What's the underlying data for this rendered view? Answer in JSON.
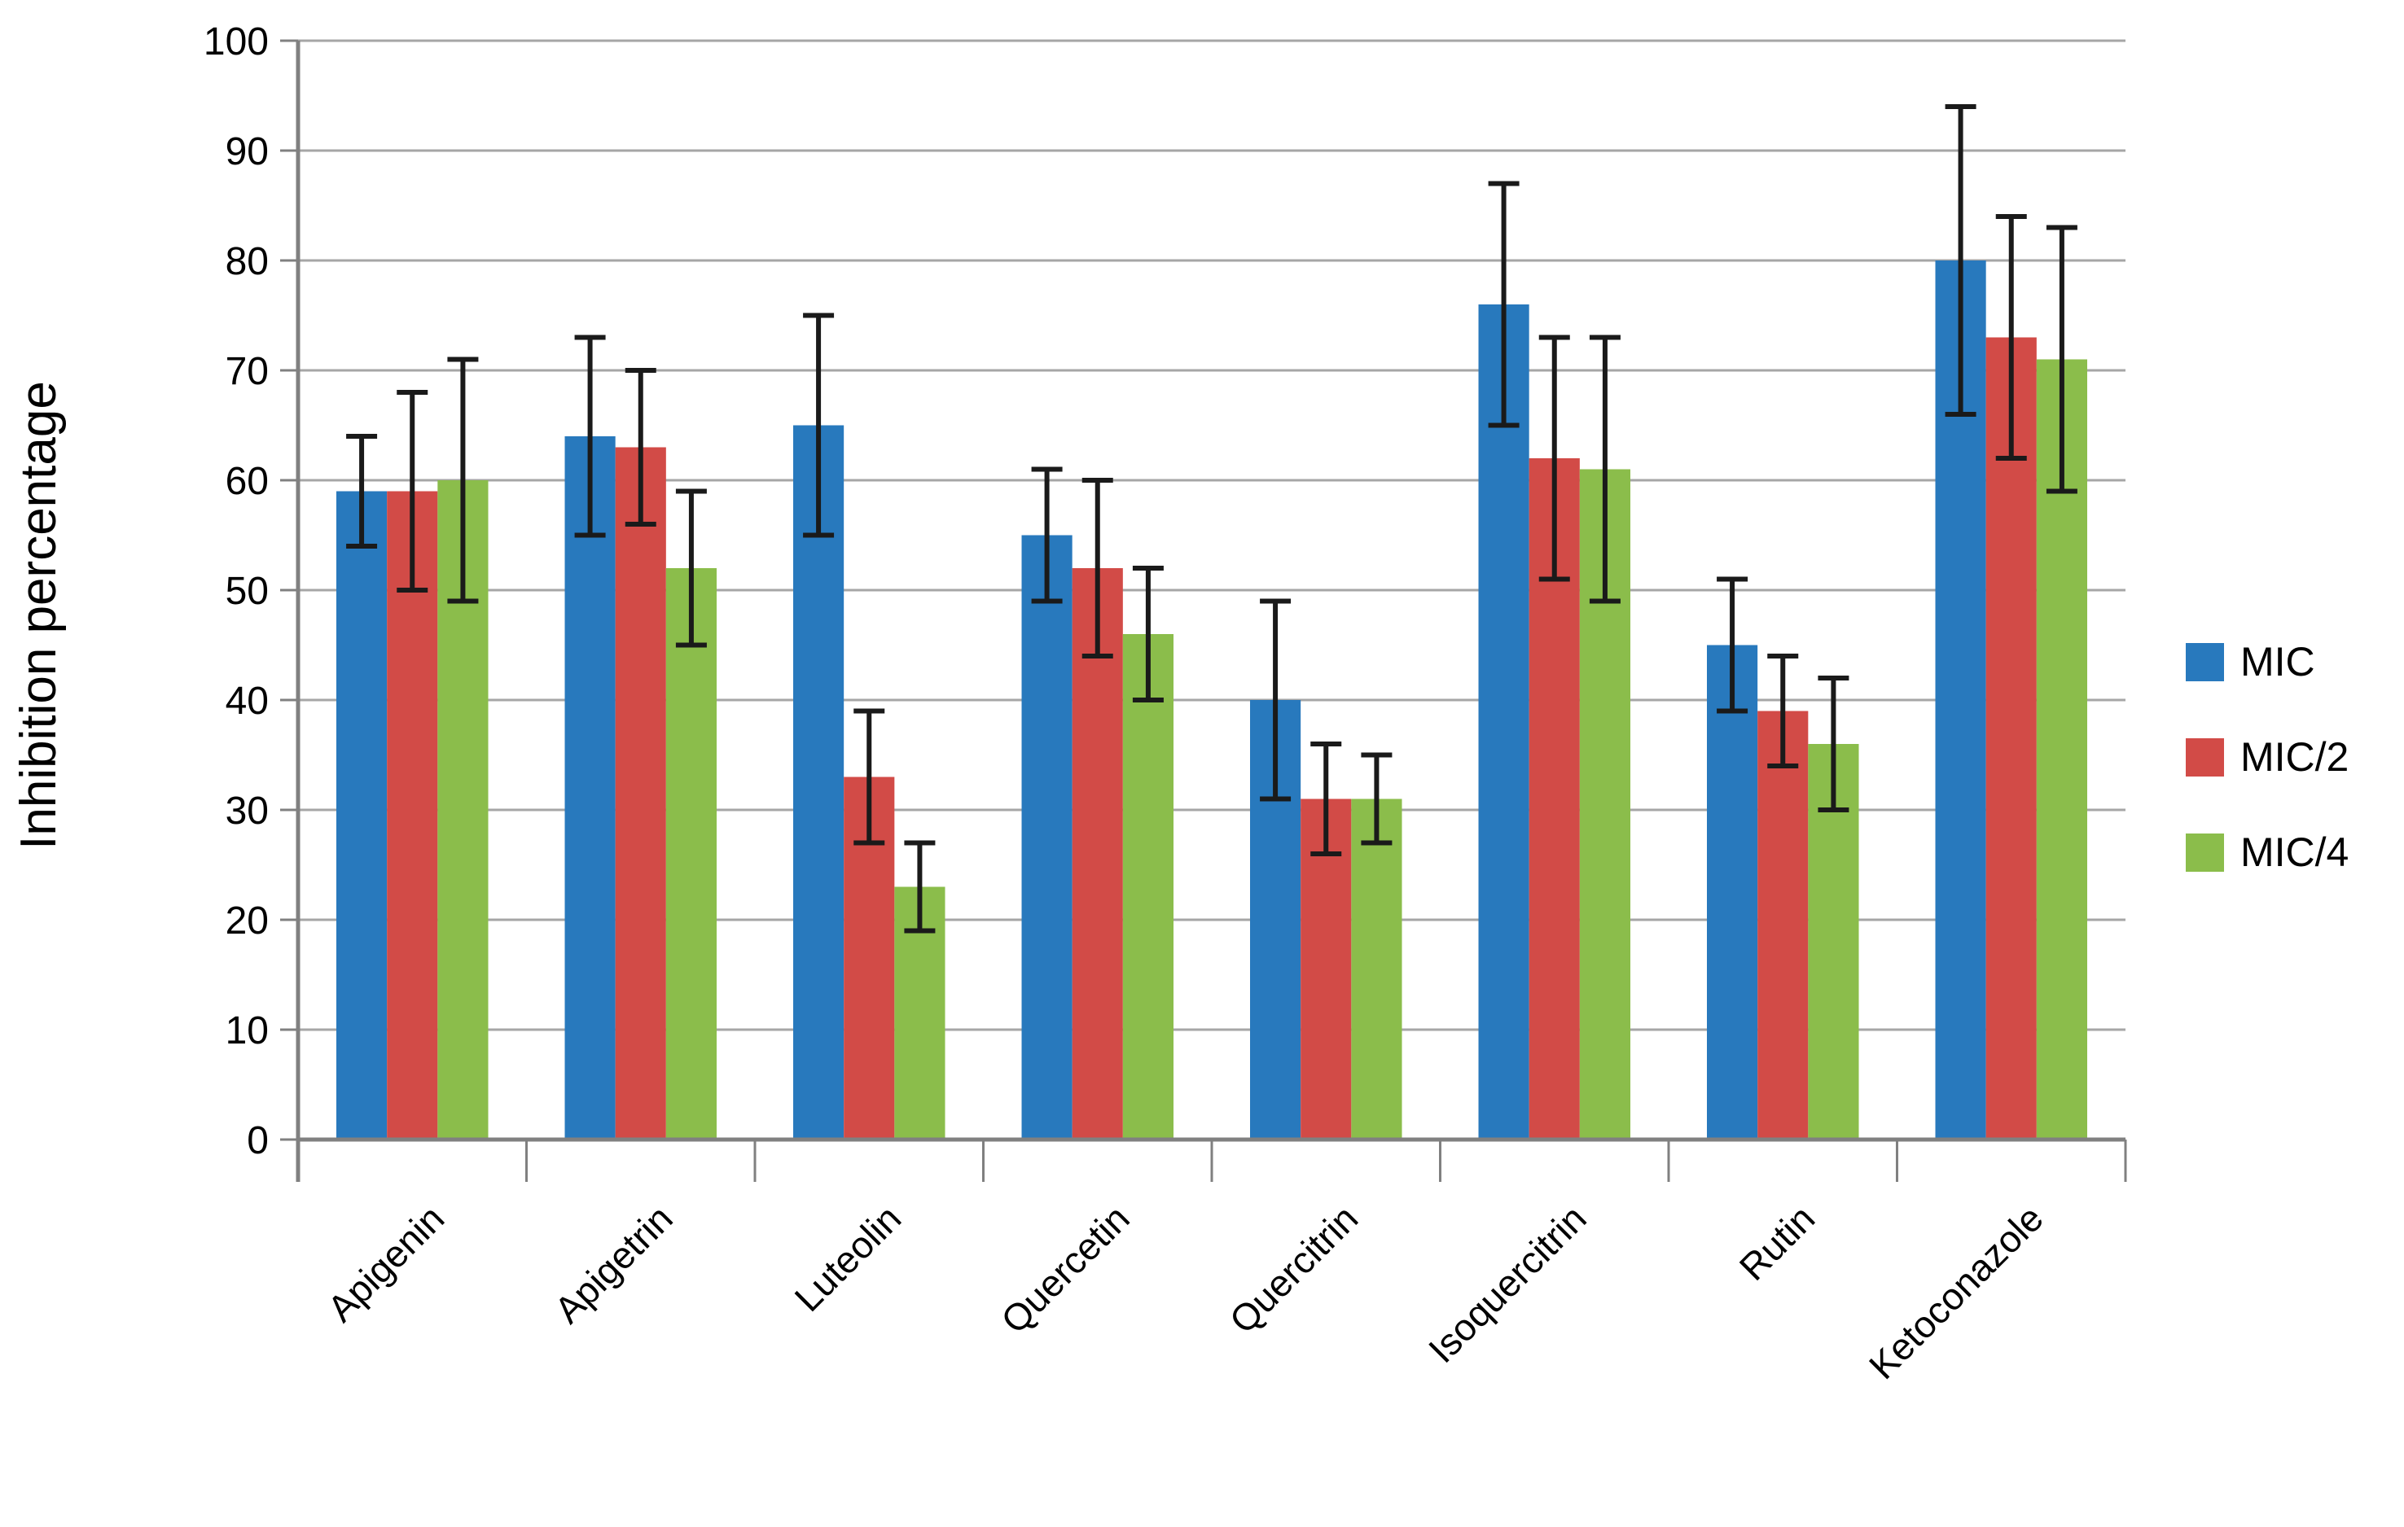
{
  "chart_data": {
    "type": "bar",
    "title": "",
    "xlabel": "",
    "ylabel": "Inhibition percentage",
    "ylim": [
      0,
      100
    ],
    "ytick_step": 10,
    "yticks": [
      0,
      10,
      20,
      30,
      40,
      50,
      60,
      70,
      80,
      90,
      100
    ],
    "grid": "horizontal",
    "legend_position": "right",
    "categories": [
      "Apigenin",
      "Apigetrin",
      "Luteolin",
      "Quercetin",
      "Quercitrin",
      "Isoquercitrin",
      "Rutin",
      "Ketoconazole"
    ],
    "series": [
      {
        "name": "MIC",
        "color": "#2879BD",
        "values": [
          59,
          64,
          65,
          55,
          40,
          76,
          45,
          80
        ],
        "errors": [
          [
            54,
            64
          ],
          [
            55,
            73
          ],
          [
            55,
            75
          ],
          [
            49,
            61
          ],
          [
            31,
            49
          ],
          [
            65,
            87
          ],
          [
            39,
            51
          ],
          [
            66,
            94
          ]
        ]
      },
      {
        "name": "MIC/2",
        "color": "#D24B47",
        "values": [
          59,
          63,
          33,
          52,
          31,
          62,
          39,
          73
        ],
        "errors": [
          [
            50,
            68
          ],
          [
            56,
            70
          ],
          [
            27,
            39
          ],
          [
            44,
            60
          ],
          [
            26,
            36
          ],
          [
            51,
            73
          ],
          [
            34,
            44
          ],
          [
            62,
            84
          ]
        ]
      },
      {
        "name": "MIC/4",
        "color": "#8BBD4B",
        "values": [
          60,
          52,
          23,
          46,
          31,
          61,
          36,
          71
        ],
        "errors": [
          [
            49,
            71
          ],
          [
            45,
            59
          ],
          [
            19,
            27
          ],
          [
            40,
            52
          ],
          [
            27,
            35
          ],
          [
            49,
            73
          ],
          [
            30,
            42
          ],
          [
            59,
            83
          ]
        ]
      }
    ],
    "colors": {
      "background": "#FFFFFF",
      "gridline": "#A6A6A6",
      "axis": "#808080",
      "error_bar": "#1A1A1A",
      "text": "#000000"
    }
  }
}
